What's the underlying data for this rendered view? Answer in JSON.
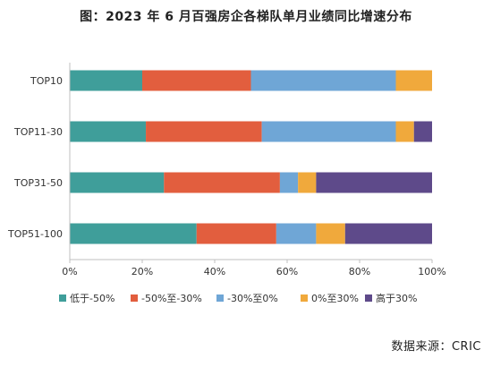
{
  "title": "图：2023 年 6 月百强房企各梯队单月业绩同比增速分布",
  "source": "数据来源：CRIC",
  "chart_data": {
    "type": "bar",
    "orientation": "horizontal",
    "stacked": "percent",
    "categories": [
      "TOP10",
      "TOP11-30",
      "TOP31-50",
      "TOP51-100"
    ],
    "series": [
      {
        "name": "低于-50%",
        "color": "#3f9e9a",
        "values": [
          20,
          21,
          26,
          35
        ]
      },
      {
        "name": "-50%至-30%",
        "color": "#e25e3e",
        "values": [
          30,
          32,
          32,
          22
        ]
      },
      {
        "name": "-30%至0%",
        "color": "#6fa6d6",
        "values": [
          40,
          37,
          5,
          11
        ]
      },
      {
        "name": "0%至30%",
        "color": "#f0a93c",
        "values": [
          10,
          5,
          5,
          8
        ]
      },
      {
        "name": "高于30%",
        "color": "#5e4a8a",
        "values": [
          0,
          5,
          32,
          24
        ]
      }
    ],
    "x_ticks": [
      "0%",
      "20%",
      "40%",
      "60%",
      "80%",
      "100%"
    ],
    "xlim": [
      0,
      100
    ],
    "legend_position": "bottom",
    "grid": false
  }
}
